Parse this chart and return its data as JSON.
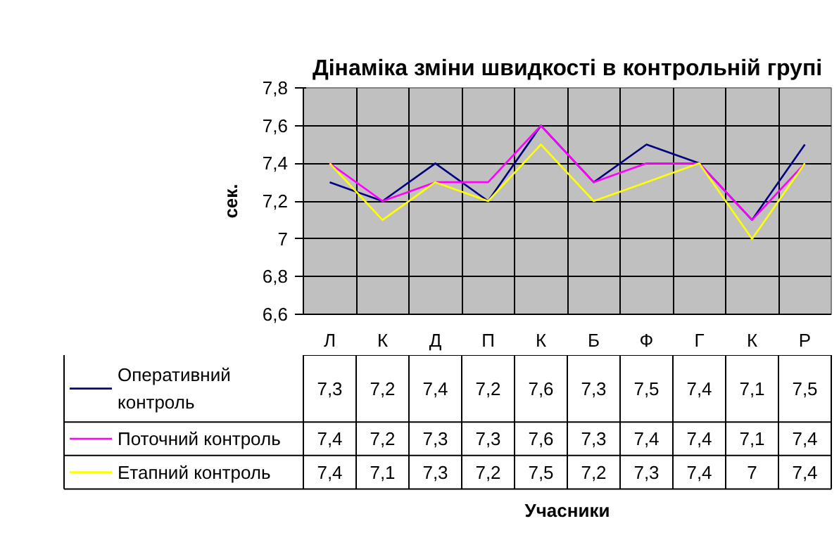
{
  "chart_data": {
    "type": "line",
    "title": "Дінаміка зміни швидкості в контрольній групі",
    "annotations": [
      "Учасники"
    ],
    "ylabel": "сек.",
    "categories": [
      "Л",
      "К",
      "Д",
      "П",
      "К",
      "Б",
      "Ф",
      "Г",
      "К",
      "Р"
    ],
    "series": [
      {
        "name": "Оперативний контроль",
        "color": "#000080",
        "values": [
          7.3,
          7.2,
          7.4,
          7.2,
          7.6,
          7.3,
          7.5,
          7.4,
          7.1,
          7.5
        ],
        "value_labels": [
          "7,3",
          "7,2",
          "7,4",
          "7,2",
          "7,6",
          "7,3",
          "7,5",
          "7,4",
          "7,1",
          "7,5"
        ]
      },
      {
        "name": "Поточний контроль",
        "color": "#ff00ff",
        "values": [
          7.4,
          7.2,
          7.3,
          7.3,
          7.6,
          7.3,
          7.4,
          7.4,
          7.1,
          7.4
        ],
        "value_labels": [
          "7,4",
          "7,2",
          "7,3",
          "7,3",
          "7,6",
          "7,3",
          "7,4",
          "7,4",
          "7,1",
          "7,4"
        ]
      },
      {
        "name": "Етапний контроль",
        "color": "#ffff00",
        "values": [
          7.4,
          7.1,
          7.3,
          7.2,
          7.5,
          7.2,
          7.3,
          7.4,
          7,
          7.4
        ],
        "value_labels": [
          "7,4",
          "7,1",
          "7,3",
          "7,2",
          "7,5",
          "7,2",
          "7,3",
          "7,4",
          "7",
          "7,4"
        ]
      }
    ],
    "ylim": [
      6.6,
      7.8
    ],
    "yticks": [
      {
        "value": 6.6,
        "label": "6,6"
      },
      {
        "value": 6.8,
        "label": "6,8"
      },
      7,
      {
        "value": 7.2,
        "label": "7,2"
      },
      {
        "value": 7.4,
        "label": "7,4"
      },
      {
        "value": 7.6,
        "label": "7,6"
      },
      {
        "value": 7.8,
        "label": "7,8"
      }
    ],
    "grid": "y",
    "legend": "bottom",
    "line_style": "solid",
    "marker": "none"
  }
}
